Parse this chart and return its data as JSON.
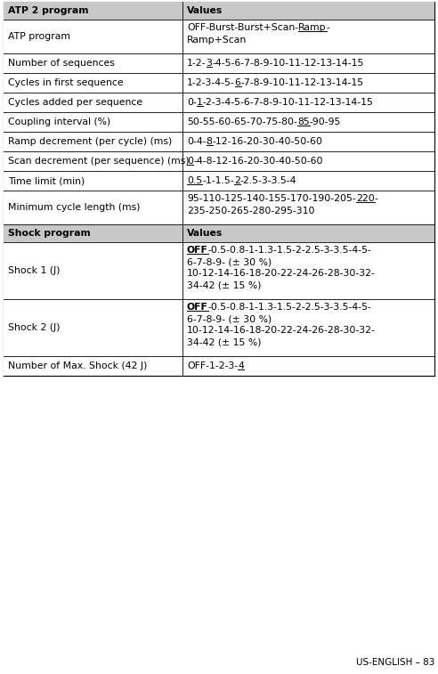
{
  "figsize": [
    4.92,
    7.57
  ],
  "dpi": 100,
  "bg_color": "#ffffff",
  "header_bg": "#c8c8c8",
  "border_color": "#000000",
  "footer_text": "US-ENGLISH – 83",
  "sections": [
    {
      "type": "header",
      "col1": "ATP 2 program",
      "col2": "Values"
    },
    {
      "type": "row",
      "col1": "ATP program",
      "col2_lines": [
        [
          {
            "text": "OFF-Burst-Burst+Scan-",
            "bold": false,
            "underline": false
          },
          {
            "text": "Ramp",
            "bold": false,
            "underline": true
          },
          {
            "text": "-",
            "bold": false,
            "underline": false
          }
        ],
        [
          {
            "text": "Ramp+Scan",
            "bold": false,
            "underline": false
          }
        ]
      ]
    },
    {
      "type": "row",
      "col1": "Number of sequences",
      "col2_lines": [
        [
          {
            "text": "1-2-",
            "bold": false,
            "underline": false
          },
          {
            "text": "3",
            "bold": false,
            "underline": true
          },
          {
            "text": "-4-5-6-7-8-9-10-11-12-13-14-15",
            "bold": false,
            "underline": false
          }
        ]
      ]
    },
    {
      "type": "row",
      "col1": "Cycles in first sequence",
      "col2_lines": [
        [
          {
            "text": "1-2-3-4-5-",
            "bold": false,
            "underline": false
          },
          {
            "text": "6",
            "bold": false,
            "underline": true
          },
          {
            "text": "-7-8-9-10-11-12-13-14-15",
            "bold": false,
            "underline": false
          }
        ]
      ]
    },
    {
      "type": "row",
      "col1": "Cycles added per sequence",
      "col2_lines": [
        [
          {
            "text": "0-",
            "bold": false,
            "underline": false
          },
          {
            "text": "1",
            "bold": false,
            "underline": true
          },
          {
            "text": "-2-3-4-5-6-7-8-9-10-11-12-13-14-15",
            "bold": false,
            "underline": false
          }
        ]
      ]
    },
    {
      "type": "row",
      "col1": "Coupling interval (%)",
      "col2_lines": [
        [
          {
            "text": "50-55-60-65-70-75-80-",
            "bold": false,
            "underline": false
          },
          {
            "text": "85",
            "bold": false,
            "underline": true
          },
          {
            "text": "-90-95",
            "bold": false,
            "underline": false
          }
        ]
      ]
    },
    {
      "type": "row",
      "col1": "Ramp decrement (per cycle) (ms)",
      "col2_lines": [
        [
          {
            "text": "0-4-",
            "bold": false,
            "underline": false
          },
          {
            "text": "8",
            "bold": false,
            "underline": true
          },
          {
            "text": "-12-16-20-30-40-50-60",
            "bold": false,
            "underline": false
          }
        ]
      ]
    },
    {
      "type": "row",
      "col1": "Scan decrement (per sequence) (ms)",
      "col2_lines": [
        [
          {
            "text": "0",
            "bold": false,
            "underline": true
          },
          {
            "text": "-4-8-12-16-20-30-40-50-60",
            "bold": false,
            "underline": false
          }
        ]
      ]
    },
    {
      "type": "row",
      "col1": "Time limit (min)",
      "col2_lines": [
        [
          {
            "text": "0.5",
            "bold": false,
            "underline": true
          },
          {
            "text": "-1-1.5-",
            "bold": false,
            "underline": false
          },
          {
            "text": "2",
            "bold": false,
            "underline": true
          },
          {
            "text": "-2.5-3-3.5-4",
            "bold": false,
            "underline": false
          }
        ]
      ]
    },
    {
      "type": "row",
      "col1": "Minimum cycle length (ms)",
      "col2_lines": [
        [
          {
            "text": "95-110-125-140-155-170-190-205-",
            "bold": false,
            "underline": false
          },
          {
            "text": "220",
            "bold": false,
            "underline": true
          },
          {
            "text": "-",
            "bold": false,
            "underline": false
          }
        ],
        [
          {
            "text": "235-250-265-280-295-310",
            "bold": false,
            "underline": false
          }
        ]
      ]
    },
    {
      "type": "header",
      "col1": "Shock program",
      "col2": "Values"
    },
    {
      "type": "row",
      "col1": "Shock 1 (J)",
      "col2_lines": [
        [
          {
            "text": "OFF",
            "bold": true,
            "underline": true
          },
          {
            "text": "-0.5-0.8-1-1.3-1.5-2-2.5-3-3.5-4-5-",
            "bold": false,
            "underline": false
          }
        ],
        [
          {
            "text": "6-7-8-9- (± 30 %)",
            "bold": false,
            "underline": false
          }
        ],
        [
          {
            "text": "10-12-14-16-18-20-22-24-26-28-30-32-",
            "bold": false,
            "underline": false
          }
        ],
        [
          {
            "text": "34-42 (± 15 %)",
            "bold": false,
            "underline": false
          }
        ]
      ]
    },
    {
      "type": "row",
      "col1": "Shock 2 (J)",
      "col2_lines": [
        [
          {
            "text": "OFF",
            "bold": true,
            "underline": true
          },
          {
            "text": "-0.5-0.8-1-1.3-1.5-2-2.5-3-3.5-4-5-",
            "bold": false,
            "underline": false
          }
        ],
        [
          {
            "text": "6-7-8-9- (± 30 %)",
            "bold": false,
            "underline": false
          }
        ],
        [
          {
            "text": "10-12-14-16-18-20-22-24-26-28-30-32-",
            "bold": false,
            "underline": false
          }
        ],
        [
          {
            "text": "34-42 (± 15 %)",
            "bold": false,
            "underline": false
          }
        ]
      ]
    },
    {
      "type": "row",
      "col1": "Number of Max. Shock (42 J)",
      "col2_lines": [
        [
          {
            "text": "OFF-1-2-3-",
            "bold": false,
            "underline": false
          },
          {
            "text": "4",
            "bold": false,
            "underline": true
          }
        ]
      ]
    }
  ]
}
